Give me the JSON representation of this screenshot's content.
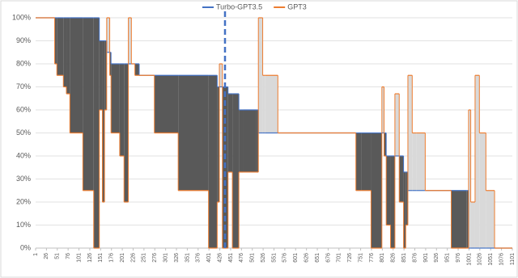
{
  "chart_data": {
    "type": "step",
    "x": [
      1,
      45,
      50,
      65,
      72,
      80,
      110,
      135,
      148,
      155,
      160,
      165,
      172,
      175,
      195,
      205,
      215,
      222,
      230,
      240,
      275,
      330,
      400,
      420,
      425,
      432,
      445,
      455,
      470,
      480,
      510,
      515,
      525,
      530,
      560,
      740,
      752,
      775,
      800,
      805,
      810,
      820,
      830,
      840,
      850,
      855,
      860,
      870,
      880,
      900,
      960,
      995,
      1000,
      1005,
      1015,
      1025,
      1040,
      1060,
      1101
    ],
    "series": [
      {
        "name": "Turbo-GPT3.5",
        "color": "#4472c4",
        "values": [
          100,
          100,
          100,
          100,
          100,
          100,
          100,
          100,
          90,
          90,
          90,
          85,
          85,
          80,
          80,
          80,
          80,
          80,
          80,
          75,
          75,
          75,
          75,
          70,
          70,
          70,
          67,
          67,
          60,
          60,
          60,
          50,
          50,
          50,
          50,
          50,
          50,
          50,
          50,
          50,
          40,
          40,
          40,
          40,
          33,
          33,
          25,
          25,
          25,
          25,
          25,
          25,
          0,
          0,
          0,
          0,
          0,
          0,
          0
        ]
      },
      {
        "name": "GPT3",
        "color": "#ed7d31",
        "values": [
          100,
          80,
          75,
          70,
          67,
          50,
          25,
          0,
          60,
          20,
          60,
          100,
          75,
          50,
          40,
          20,
          100,
          80,
          75,
          75,
          50,
          25,
          0,
          20,
          80,
          0,
          33,
          0,
          33,
          33,
          33,
          100,
          75,
          75,
          50,
          25,
          25,
          0,
          70,
          40,
          10,
          0,
          67,
          20,
          0,
          10,
          75,
          50,
          50,
          25,
          0,
          0,
          60,
          20,
          75,
          50,
          25,
          0,
          0
        ]
      }
    ],
    "fill_above_color": "#595959",
    "fill_below_color": "#d9d9d9",
    "vline_x": 438,
    "vline_color": "#4472c4",
    "xlim": [
      1,
      1101
    ],
    "xticks": [
      1,
      26,
      51,
      76,
      101,
      126,
      151,
      176,
      201,
      226,
      251,
      276,
      301,
      326,
      351,
      376,
      401,
      426,
      451,
      476,
      501,
      526,
      551,
      576,
      601,
      626,
      651,
      676,
      701,
      726,
      751,
      776,
      801,
      826,
      851,
      876,
      901,
      926,
      951,
      976,
      1001,
      1026,
      1051,
      1076,
      1101
    ],
    "ylim": [
      0,
      100
    ],
    "yticks": [
      {
        "value": 0,
        "label": "0%"
      },
      {
        "value": 10,
        "label": "10%"
      },
      {
        "value": 20,
        "label": "20%"
      },
      {
        "value": 30,
        "label": "30%"
      },
      {
        "value": 40,
        "label": "40%"
      },
      {
        "value": 50,
        "label": "50%"
      },
      {
        "value": 60,
        "label": "60%"
      },
      {
        "value": 70,
        "label": "70%"
      },
      {
        "value": 80,
        "label": "80%"
      },
      {
        "value": 90,
        "label": "90%"
      },
      {
        "value": 100,
        "label": "100%"
      }
    ],
    "grid": true,
    "legend": "top"
  }
}
